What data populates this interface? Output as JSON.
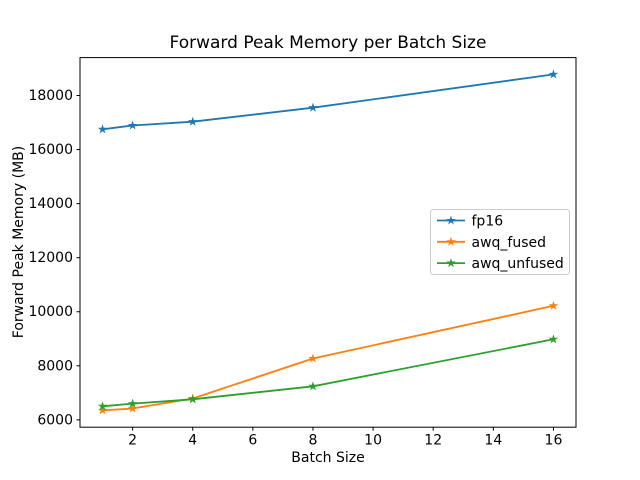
{
  "figure": {
    "background": "#ffffff"
  },
  "chart_data": {
    "type": "line",
    "title": "Forward Peak Memory per Batch Size",
    "xlabel": "Batch Size",
    "ylabel": "Forward Peak Memory (MB)",
    "x": [
      1,
      2,
      4,
      8,
      16
    ],
    "series": [
      {
        "name": "fp16",
        "color": "#1f77b4",
        "values": [
          16750,
          16890,
          17030,
          17550,
          18780
        ]
      },
      {
        "name": "awq_fused",
        "color": "#ff7f0e",
        "values": [
          6350,
          6420,
          6790,
          8270,
          10220
        ]
      },
      {
        "name": "awq_unfused",
        "color": "#2ca02c",
        "values": [
          6500,
          6600,
          6760,
          7240,
          8980
        ]
      }
    ],
    "marker": "star",
    "xlim": [
      0.25,
      16.75
    ],
    "ylim": [
      5728,
      19402
    ],
    "xticks": [
      2,
      4,
      6,
      8,
      10,
      12,
      14,
      16
    ],
    "yticks": [
      6000,
      8000,
      10000,
      12000,
      14000,
      16000,
      18000
    ],
    "grid": false,
    "legend": {
      "position": "center-right",
      "entries": [
        "fp16",
        "awq_fused",
        "awq_unfused"
      ],
      "border_color": "#cccccc",
      "background": "#ffffff"
    },
    "axis_color": "#000000"
  }
}
